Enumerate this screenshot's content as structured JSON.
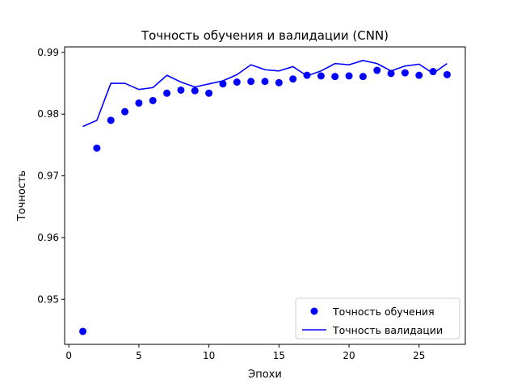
{
  "chart_data": {
    "type": "scatter",
    "title": "Точность обучения и валидации (CNN)",
    "xlabel": "Эпохи",
    "ylabel": "Точность",
    "xlim": [
      -0.3,
      28.3
    ],
    "ylim": [
      0.9427,
      0.9909
    ],
    "xticks": [
      0,
      5,
      10,
      15,
      20,
      25
    ],
    "yticks": [
      0.95,
      0.96,
      0.97,
      0.98,
      0.99
    ],
    "ytick_labels": [
      "0.95",
      "0.96",
      "0.97",
      "0.98",
      "0.99"
    ],
    "x": [
      1,
      2,
      3,
      4,
      5,
      6,
      7,
      8,
      9,
      10,
      11,
      12,
      13,
      14,
      15,
      16,
      17,
      18,
      19,
      20,
      21,
      22,
      23,
      24,
      25,
      26,
      27
    ],
    "series": [
      {
        "name": "Точность обучения",
        "style": "points",
        "color": "#0000ff",
        "values": [
          0.9448,
          0.9745,
          0.979,
          0.9804,
          0.9818,
          0.9822,
          0.9834,
          0.9839,
          0.9838,
          0.9834,
          0.9849,
          0.9852,
          0.9853,
          0.9853,
          0.9851,
          0.9857,
          0.9863,
          0.9862,
          0.9861,
          0.9862,
          0.9861,
          0.9871,
          0.9866,
          0.9867,
          0.9863,
          0.9869,
          0.9864
        ]
      },
      {
        "name": "Точность валидации",
        "style": "line",
        "color": "#0000ff",
        "values": [
          0.978,
          0.979,
          0.985,
          0.985,
          0.984,
          0.9843,
          0.9863,
          0.9852,
          0.9844,
          0.9849,
          0.9854,
          0.9864,
          0.988,
          0.9872,
          0.987,
          0.9877,
          0.9862,
          0.987,
          0.9882,
          0.988,
          0.9887,
          0.9882,
          0.987,
          0.9878,
          0.9881,
          0.9866,
          0.9882
        ]
      }
    ],
    "legend": "lower-right",
    "grid": false
  }
}
